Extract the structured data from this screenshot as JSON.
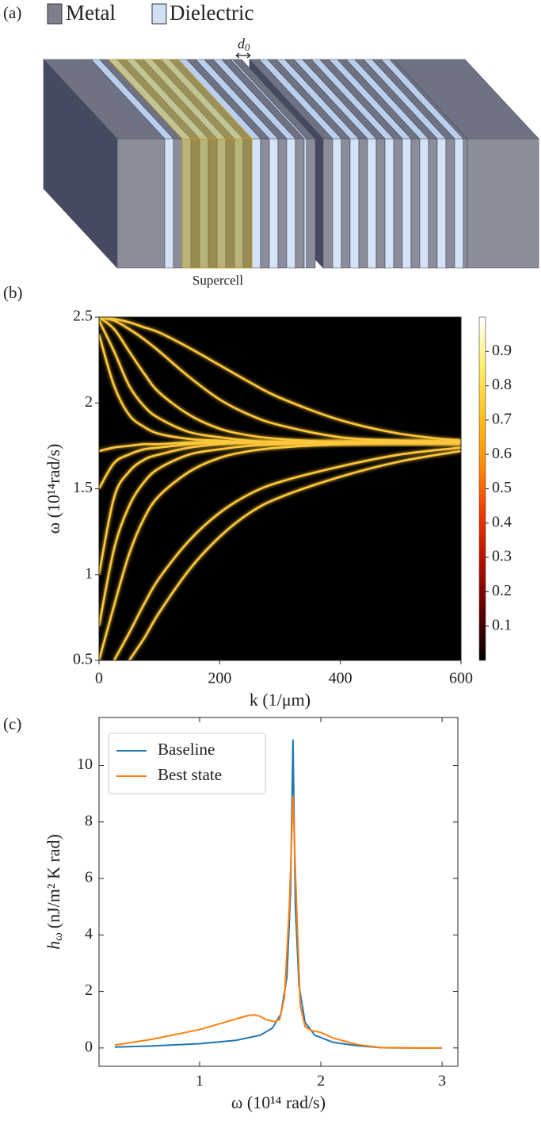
{
  "figure_a": {
    "panel_label": "(a)",
    "legend": [
      "Metal",
      "Dielectric"
    ],
    "gap_label_symbol": "d",
    "gap_label_subscript": "0",
    "caption": "Supercell"
  },
  "chart_data": [
    {
      "type": "heatmap",
      "panel_label": "(b)",
      "xlabel": "k (1/μm)",
      "ylabel": "ω (10¹⁴rad/s)",
      "x": [
        0,
        25,
        50,
        75,
        100,
        150,
        200,
        250,
        300,
        400,
        500,
        600
      ],
      "series": [
        {
          "values": [
            2.5,
            2.49,
            2.47,
            2.44,
            2.41,
            2.32,
            2.22,
            2.12,
            2.03,
            1.9,
            1.82,
            1.78
          ]
        },
        {
          "values": [
            2.5,
            2.48,
            2.43,
            2.37,
            2.3,
            2.15,
            2.02,
            1.93,
            1.87,
            1.8,
            1.78,
            1.77
          ]
        },
        {
          "values": [
            2.5,
            2.43,
            2.3,
            2.17,
            2.06,
            1.93,
            1.85,
            1.81,
            1.79,
            1.77,
            1.77,
            1.77
          ]
        },
        {
          "values": [
            2.48,
            2.3,
            2.1,
            1.98,
            1.91,
            1.83,
            1.8,
            1.78,
            1.77,
            1.77,
            1.77,
            1.77
          ]
        },
        {
          "values": [
            2.4,
            2.1,
            1.93,
            1.86,
            1.82,
            1.79,
            1.78,
            1.77,
            1.77,
            1.77,
            1.77,
            1.77
          ]
        },
        {
          "values": [
            1.72,
            1.74,
            1.75,
            1.76,
            1.76,
            1.77,
            1.77,
            1.77,
            1.77,
            1.77,
            1.77,
            1.77
          ]
        },
        {
          "values": [
            1.5,
            1.65,
            1.7,
            1.73,
            1.74,
            1.76,
            1.77,
            1.77,
            1.77,
            1.77,
            1.77,
            1.77
          ]
        },
        {
          "values": [
            1.0,
            1.45,
            1.6,
            1.67,
            1.7,
            1.74,
            1.76,
            1.77,
            1.77,
            1.77,
            1.77,
            1.77
          ]
        },
        {
          "values": [
            0.7,
            1.15,
            1.4,
            1.54,
            1.62,
            1.7,
            1.73,
            1.75,
            1.76,
            1.77,
            1.77,
            1.77
          ]
        },
        {
          "values": [
            0.5,
            0.82,
            1.12,
            1.33,
            1.46,
            1.6,
            1.68,
            1.72,
            1.74,
            1.76,
            1.77,
            1.77
          ]
        },
        {
          "values": [
            null,
            0.5,
            0.66,
            0.83,
            0.98,
            1.2,
            1.36,
            1.47,
            1.54,
            1.63,
            1.7,
            1.74
          ]
        },
        {
          "values": [
            null,
            null,
            0.5,
            0.63,
            0.78,
            1.03,
            1.22,
            1.36,
            1.45,
            1.57,
            1.66,
            1.72
          ]
        }
      ],
      "line_color": "#ffc83a",
      "background": "#000000",
      "xlim": [
        0,
        600
      ],
      "ylim": [
        0.5,
        2.5
      ],
      "xticks": [
        0,
        200,
        400,
        600
      ],
      "yticks": [
        0.5,
        1,
        1.5,
        2,
        2.5
      ],
      "colorbar": {
        "clim": [
          0,
          1
        ],
        "ticks": [
          0.1,
          0.2,
          0.3,
          0.4,
          0.5,
          0.6,
          0.7,
          0.8,
          0.9
        ],
        "colormap": [
          "#000000",
          "#5e0000",
          "#b50d00",
          "#f03b00",
          "#ff8c00",
          "#ffc21a",
          "#fff06a",
          "#ffffff"
        ]
      }
    },
    {
      "type": "line",
      "panel_label": "(c)",
      "xlabel": "ω (10¹⁴ rad/s)",
      "ylabel_symbol": "h",
      "ylabel_subscript": "ω",
      "ylabel_units": "(nJ/m² K rad)",
      "series": [
        {
          "name": "Baseline",
          "color": "#1f77b4",
          "x": [
            0.3,
            0.6,
            1.0,
            1.3,
            1.5,
            1.6,
            1.67,
            1.72,
            1.75,
            1.77,
            1.79,
            1.82,
            1.87,
            1.95,
            2.1,
            2.3,
            2.5,
            2.75,
            3.0
          ],
          "values": [
            0.03,
            0.07,
            0.15,
            0.27,
            0.45,
            0.7,
            1.2,
            2.5,
            5.5,
            10.9,
            5,
            2.2,
            0.9,
            0.45,
            0.2,
            0.08,
            0.01,
            0,
            0
          ]
        },
        {
          "name": "Best state",
          "color": "#ff7f0e",
          "x": [
            0.3,
            0.6,
            1.0,
            1.2,
            1.4,
            1.45,
            1.5,
            1.55,
            1.62,
            1.66,
            1.7,
            1.74,
            1.77,
            1.8,
            1.83,
            1.87,
            1.92,
            2.0,
            2.1,
            2.3,
            2.5,
            2.75,
            3.0
          ],
          "values": [
            0.1,
            0.3,
            0.65,
            0.9,
            1.15,
            1.17,
            1.12,
            1.0,
            0.93,
            1.0,
            1.8,
            5,
            8.9,
            5,
            1.5,
            0.75,
            0.62,
            0.55,
            0.35,
            0.12,
            0.01,
            0,
            0
          ]
        }
      ],
      "xlim": [
        0.17,
        3.13
      ],
      "ylim": [
        -0.65,
        11.7
      ],
      "xticks": [
        1,
        2,
        3
      ],
      "yticks": [
        0,
        2,
        4,
        6,
        8,
        10
      ],
      "legend": "upper left"
    }
  ]
}
